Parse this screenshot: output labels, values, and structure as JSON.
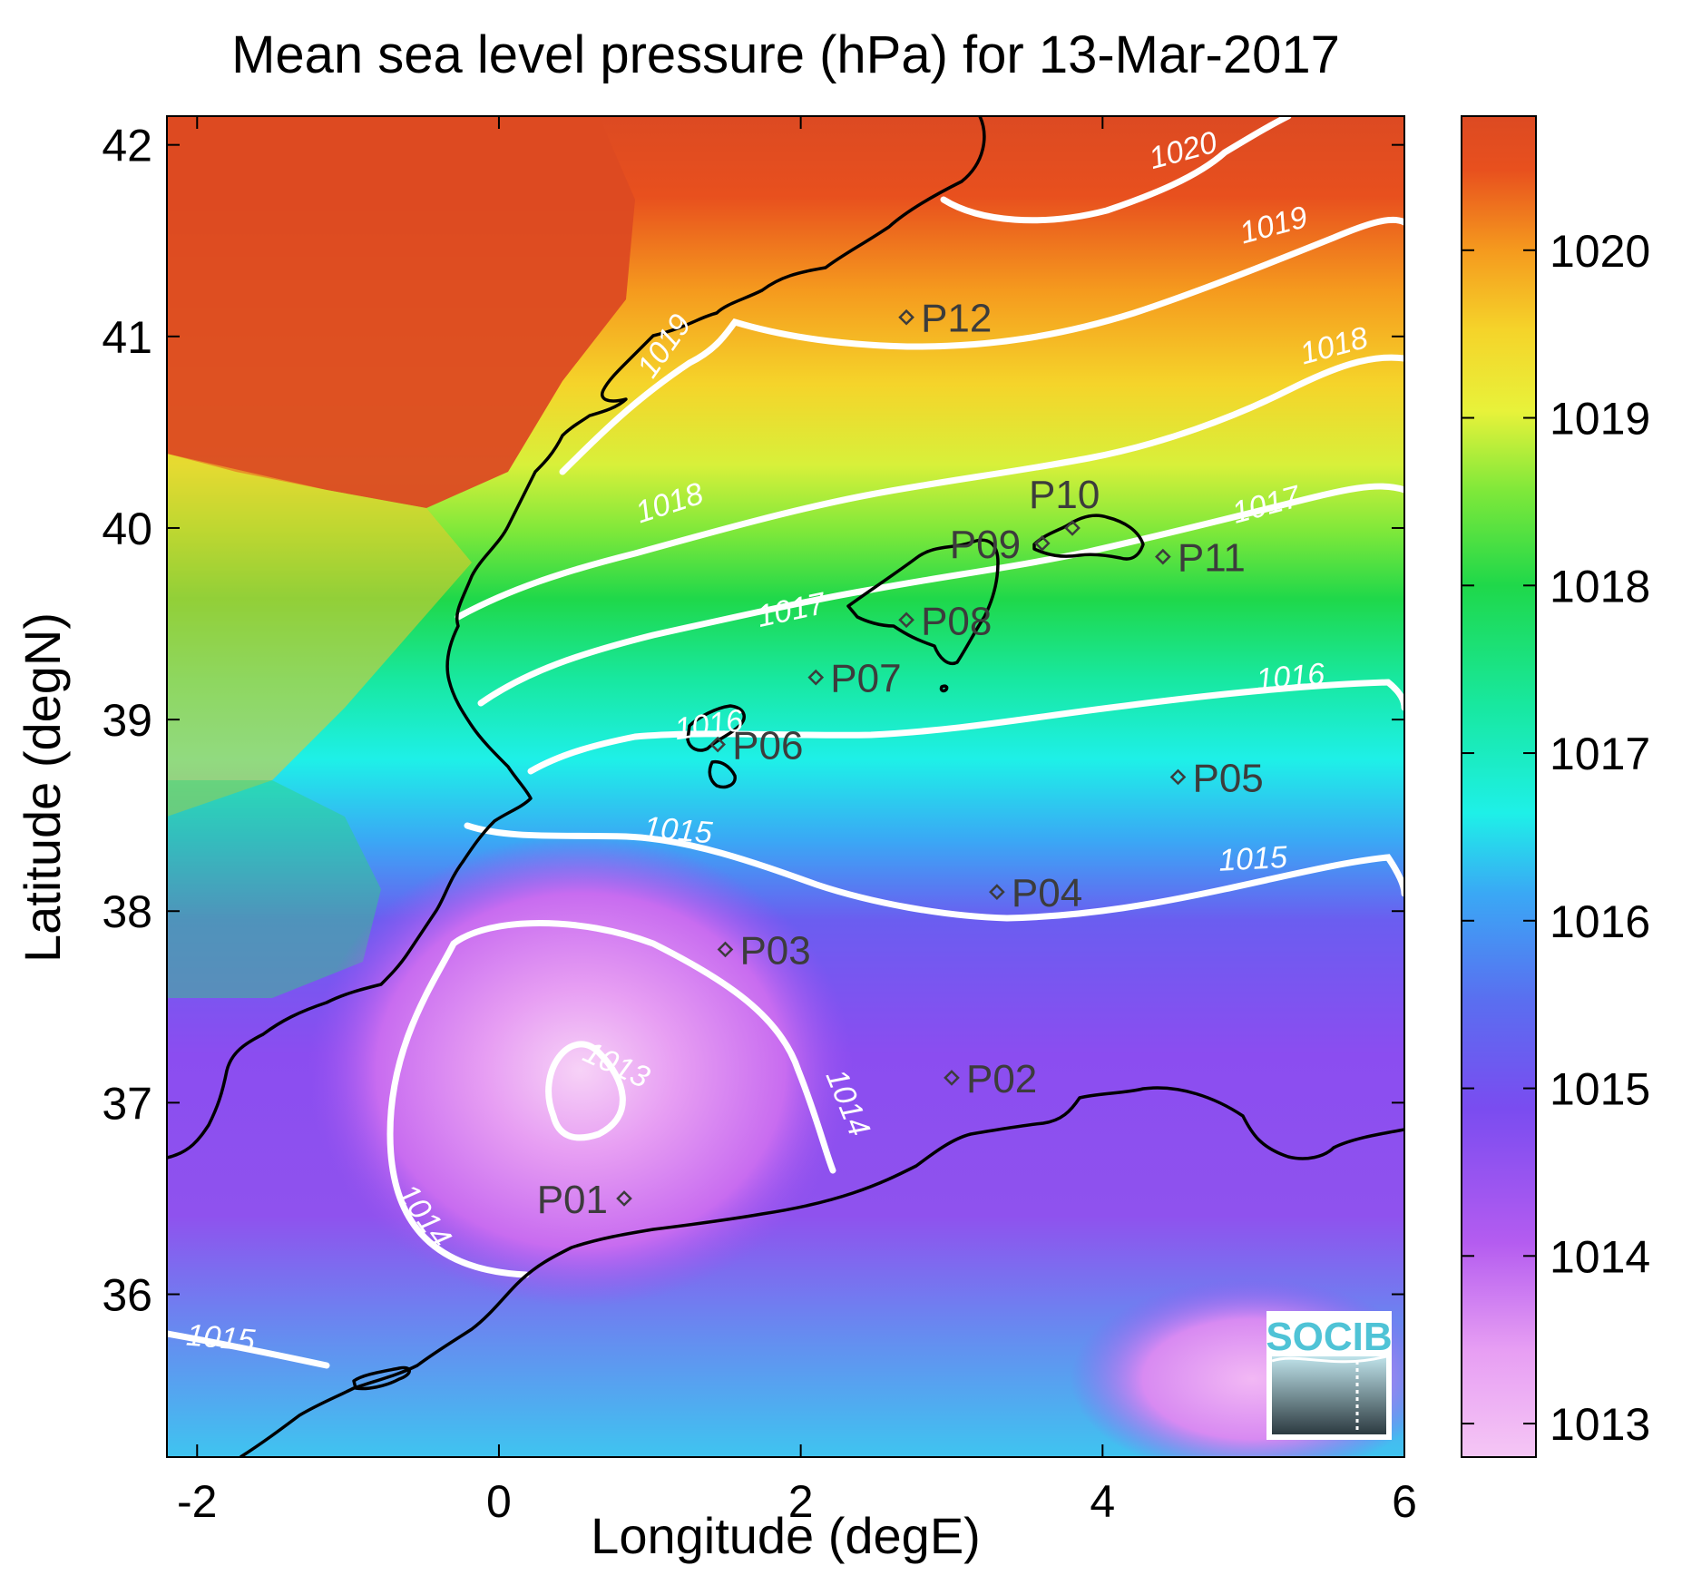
{
  "map": {
    "title": "Mean sea level pressure (hPa) for 13-Mar-2017",
    "xlabel": "Longitude (degE)",
    "ylabel": "Latitude (degN)",
    "xlim": [
      -2.2,
      6.0
    ],
    "ylim": [
      35.15,
      42.15
    ],
    "x_ticks": [
      "-2",
      "0",
      "2",
      "4",
      "6"
    ],
    "y_ticks": [
      "36",
      "37",
      "38",
      "39",
      "40",
      "41",
      "42"
    ]
  },
  "colorbar": {
    "range": [
      1012.8,
      1020.8
    ],
    "ticks": [
      "1013",
      "1014",
      "1015",
      "1016",
      "1017",
      "1018",
      "1019",
      "1020"
    ],
    "colors": [
      "#f5c6f5",
      "#cf62f0",
      "#8b4df0",
      "#6b5df0",
      "#3aa8f5",
      "#1ef0e8",
      "#18e8a0",
      "#1fd84a",
      "#7ee83a",
      "#e8f23a",
      "#f5d42a",
      "#f59a1e",
      "#e8501e",
      "#dc4a22"
    ]
  },
  "contours": [
    {
      "label": "1013"
    },
    {
      "label": "1014"
    },
    {
      "label": "1015"
    },
    {
      "label": "1016"
    },
    {
      "label": "1017"
    },
    {
      "label": "1018"
    },
    {
      "label": "1019"
    },
    {
      "label": "1020"
    }
  ],
  "stations": [
    {
      "name": "P01",
      "lon": 0.83,
      "lat": 36.5
    },
    {
      "name": "P02",
      "lon": 3.0,
      "lat": 37.13
    },
    {
      "name": "P03",
      "lon": 1.5,
      "lat": 37.8
    },
    {
      "name": "P04",
      "lon": 3.3,
      "lat": 38.1
    },
    {
      "name": "P05",
      "lon": 4.5,
      "lat": 38.7
    },
    {
      "name": "P06",
      "lon": 1.45,
      "lat": 38.87
    },
    {
      "name": "P07",
      "lon": 2.1,
      "lat": 39.22
    },
    {
      "name": "P08",
      "lon": 2.7,
      "lat": 39.52
    },
    {
      "name": "P09",
      "lon": 3.6,
      "lat": 39.92
    },
    {
      "name": "P10",
      "lon": 3.8,
      "lat": 40.0
    },
    {
      "name": "P11",
      "lon": 4.4,
      "lat": 39.85
    },
    {
      "name": "P12",
      "lon": 2.7,
      "lat": 41.1
    }
  ],
  "logo": {
    "text": "SOCIB"
  },
  "colors": {
    "high": "#dc4a22",
    "low": "#f5c6f5",
    "contour": "#ffffff",
    "coast": "#000000"
  }
}
